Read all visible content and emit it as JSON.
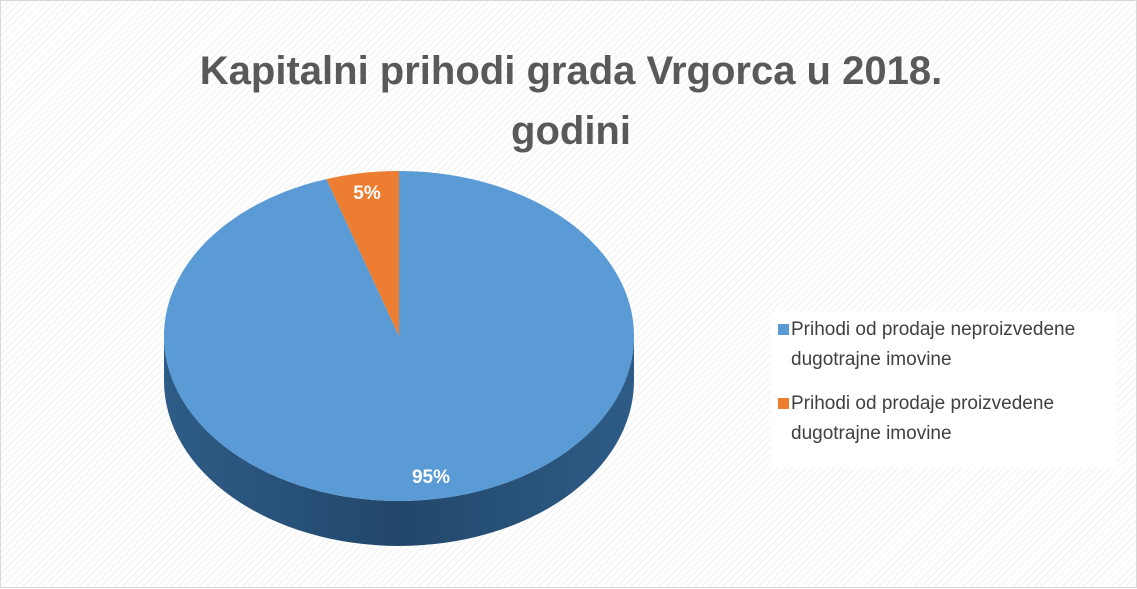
{
  "chart_data": {
    "type": "pie",
    "title": "Kapitalni prihodi grada Vrgorca u 2018. godini",
    "categories": [
      "Prihodi od prodaje neproizvedene dugotrajne imovine",
      "Prihodi od prodaje proizvedene dugotrajne imovine"
    ],
    "values": [
      95,
      5
    ],
    "value_labels": [
      "95%",
      "5%"
    ],
    "colors": [
      "#5b9bd5",
      "#ed7d31"
    ]
  }
}
